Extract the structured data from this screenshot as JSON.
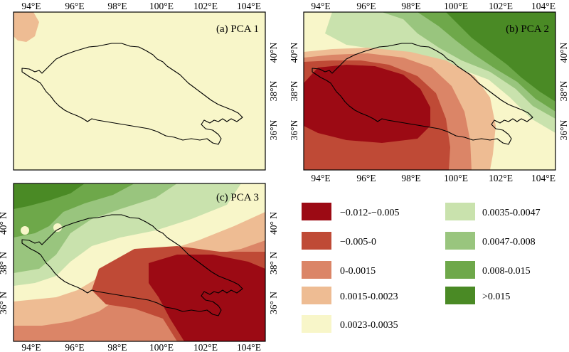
{
  "panels": [
    {
      "label": "(a) PCA 1"
    },
    {
      "label": "(b) PCA 2"
    },
    {
      "label": "(c) PCA 3"
    }
  ],
  "axis_labels": {
    "lon": [
      "94°E",
      "96°E",
      "98°E",
      "100°E",
      "102°E",
      "104°E"
    ],
    "lat": [
      "36°N",
      "38°N",
      "40°N"
    ],
    "lat_c": [
      "36° N",
      "38° N",
      "40° N"
    ]
  },
  "legend": [
    {
      "label": "−0.012-−0.005",
      "color": "#9c0a14"
    },
    {
      "label": "−0.005-0",
      "color": "#bf4a36"
    },
    {
      "label": "0-0.0015",
      "color": "#db8567"
    },
    {
      "label": "0.0015-0.0023",
      "color": "#eebc93"
    },
    {
      "label": "0.0023-0.0035",
      "color": "#f8f6c9"
    },
    {
      "label": "0.0035-0.0047",
      "color": "#c9e2ad"
    },
    {
      "label": "0.0047-0.008",
      "color": "#99c57e"
    },
    {
      "label": "0.008-0.015",
      "color": "#6ea84a"
    },
    {
      "label": ">0.015",
      "color": "#4a8a25"
    }
  ]
}
